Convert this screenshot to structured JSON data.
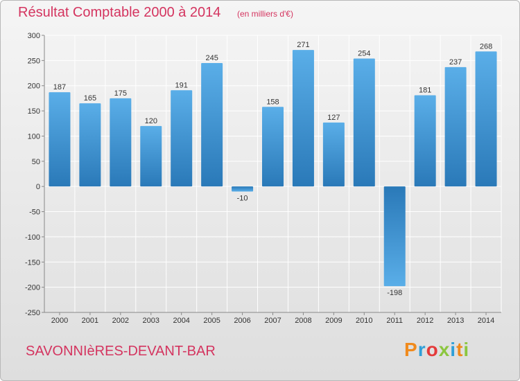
{
  "header": {
    "title": "Résultat Comptable 2000 à 2014",
    "subtitle": "(en milliers d'€)"
  },
  "footer": {
    "commune": "SAVONNIèRES-DEVANT-BAR",
    "logo_text": "Proxiti",
    "logo_colors": [
      "#f08a1c",
      "#2f9fd8",
      "#e43a3a",
      "#8cc63f",
      "#2f9fd8",
      "#f08a1c",
      "#8cc63f"
    ]
  },
  "colors": {
    "bar_light": "#5aaee8",
    "bar_dark": "#2a79b8",
    "grid": "#ffffff",
    "title": "#d4345f"
  },
  "chart_data": {
    "type": "bar",
    "title": "Résultat Comptable 2000 à 2014",
    "subtitle": "(en milliers d'€)",
    "categories": [
      "2000",
      "2001",
      "2002",
      "2003",
      "2004",
      "2005",
      "2006",
      "2007",
      "2008",
      "2009",
      "2010",
      "2011",
      "2012",
      "2013",
      "2014"
    ],
    "values": [
      187,
      165,
      175,
      120,
      191,
      245,
      -10,
      158,
      271,
      127,
      254,
      -198,
      181,
      237,
      268
    ],
    "value_labels": [
      "187",
      "165",
      "175",
      "120",
      "191",
      "245",
      "-10",
      "158",
      "271",
      "127",
      "254",
      "-198",
      "181",
      "237",
      "268"
    ],
    "ylim": [
      -250,
      300
    ],
    "yticks": [
      300,
      250,
      200,
      150,
      100,
      50,
      0,
      -50,
      -100,
      -150,
      -200,
      -250
    ],
    "ytick_labels": [
      "300",
      "250",
      "200",
      "150",
      "100",
      "50",
      "0",
      "-50",
      "-100",
      "-150",
      "-200",
      "-250"
    ],
    "grid": true,
    "xlabel": "",
    "ylabel": ""
  }
}
